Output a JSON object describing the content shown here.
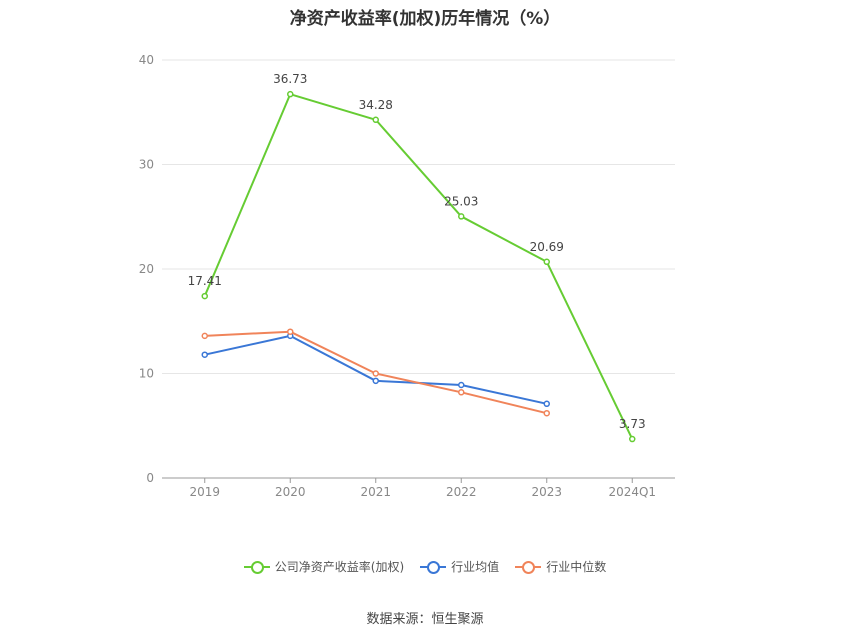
{
  "chart_data": {
    "type": "line",
    "title": "净资产收益率(加权)历年情况（%）",
    "categories": [
      "2019",
      "2020",
      "2021",
      "2022",
      "2023",
      "2024Q1"
    ],
    "ylim": [
      0,
      40
    ],
    "yticks": [
      0,
      10,
      20,
      30,
      40
    ],
    "grid": true,
    "legend_position": "bottom",
    "series": [
      {
        "name": "公司净资产收益率(加权)",
        "color": "#66cc33",
        "values": [
          17.41,
          36.73,
          34.28,
          25.03,
          20.69,
          3.73
        ],
        "labels": [
          "17.41",
          "36.73",
          "34.28",
          "25.03",
          "20.69",
          "3.73"
        ]
      },
      {
        "name": "行业均值",
        "color": "#3a77d6",
        "values": [
          11.8,
          13.6,
          9.3,
          8.9,
          7.1,
          null
        ]
      },
      {
        "name": "行业中位数",
        "color": "#f0845a",
        "values": [
          13.6,
          14.0,
          10.0,
          8.2,
          6.2,
          null
        ]
      }
    ]
  },
  "source": "数据来源：恒生聚源"
}
